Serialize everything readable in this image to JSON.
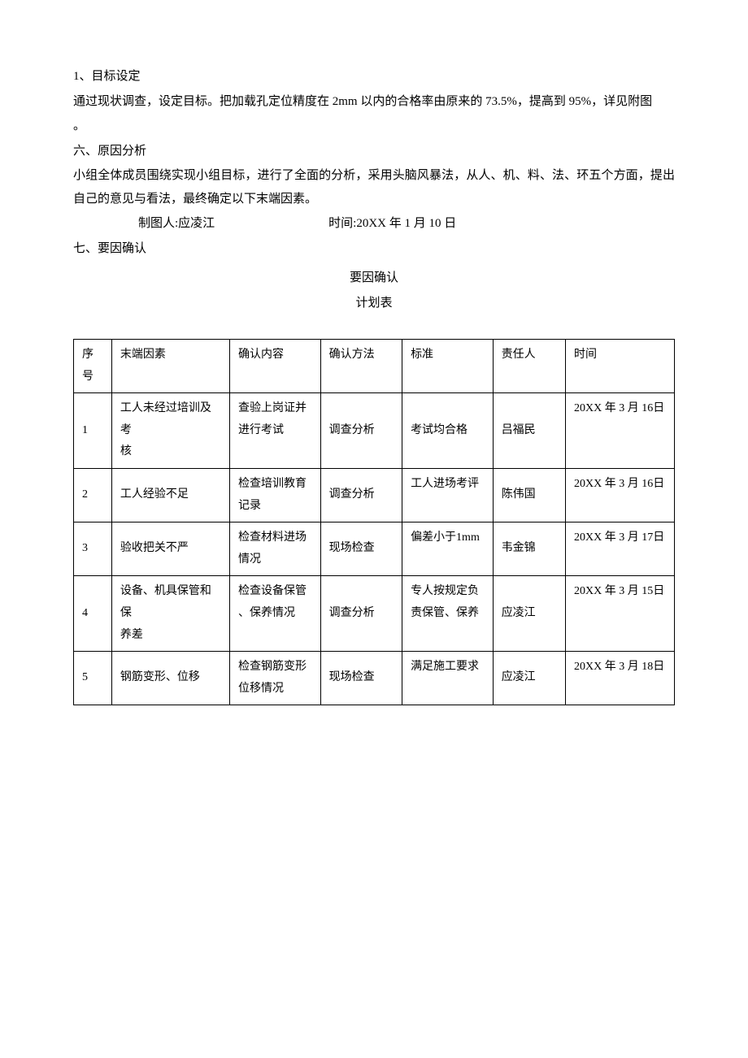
{
  "section1": {
    "heading": "1、目标设定",
    "para": "通过现状调查，设定目标。把加载孔定位精度在 2mm 以内的合格率由原来的 73.5%，提高到 95%，详见附图",
    "dot": "。"
  },
  "section6": {
    "heading": "六、原因分析",
    "para": "小组全体成员围绕实现小组目标，进行了全面的分析，采用头脑风暴法，从人、机、料、法、环五个方面，提出自己的意见与看法，最终确定以下末端因素。",
    "author_label": "制图人:应凌江",
    "date_label": "时间:20XX 年 1 月 10 日"
  },
  "section7": {
    "heading": "七、要因确认",
    "table_title": "要因确认",
    "table_subtitle": "计划表"
  },
  "table": {
    "headers": {
      "seq": "序号",
      "factor": "末端因素",
      "content": "确认内容",
      "method": "确认方法",
      "standard": "标准",
      "person": "责任人",
      "time": "时间"
    },
    "rows": [
      {
        "seq": "1",
        "factor": "工人未经过培训及考\n核",
        "content": "查验上岗证并\n进行考试",
        "method": "调查分析",
        "standard": "考试均合格",
        "person": "吕福民",
        "time": "20XX 年 3 月 16日"
      },
      {
        "seq": "2",
        "factor": "工人经验不足",
        "content": "检查培训教育\n记录",
        "method": "调查分析",
        "standard": "工人进场考评",
        "person": "陈伟国",
        "time": "20XX 年 3 月 16日"
      },
      {
        "seq": "3",
        "factor": "验收把关不严",
        "content": "检查材料进场\n情况",
        "method": "现场检查",
        "standard": "偏差小于1mm",
        "person": "韦金锦",
        "time": "20XX 年 3 月 17日"
      },
      {
        "seq": "4",
        "factor": "设备、机具保管和保\n养差",
        "content": "检查设备保管\n、保养情况",
        "method": "调查分析",
        "standard": "专人按规定负\n责保管、保养",
        "person": "应凌江",
        "time": "20XX 年 3 月 15日"
      },
      {
        "seq": "5",
        "factor": "钢筋变形、位移",
        "content": "检查钢筋变形\n位移情况",
        "method": "现场检查",
        "standard": "满足施工要求",
        "person": "应凌江",
        "time": "20XX 年 3 月 18日"
      }
    ]
  }
}
